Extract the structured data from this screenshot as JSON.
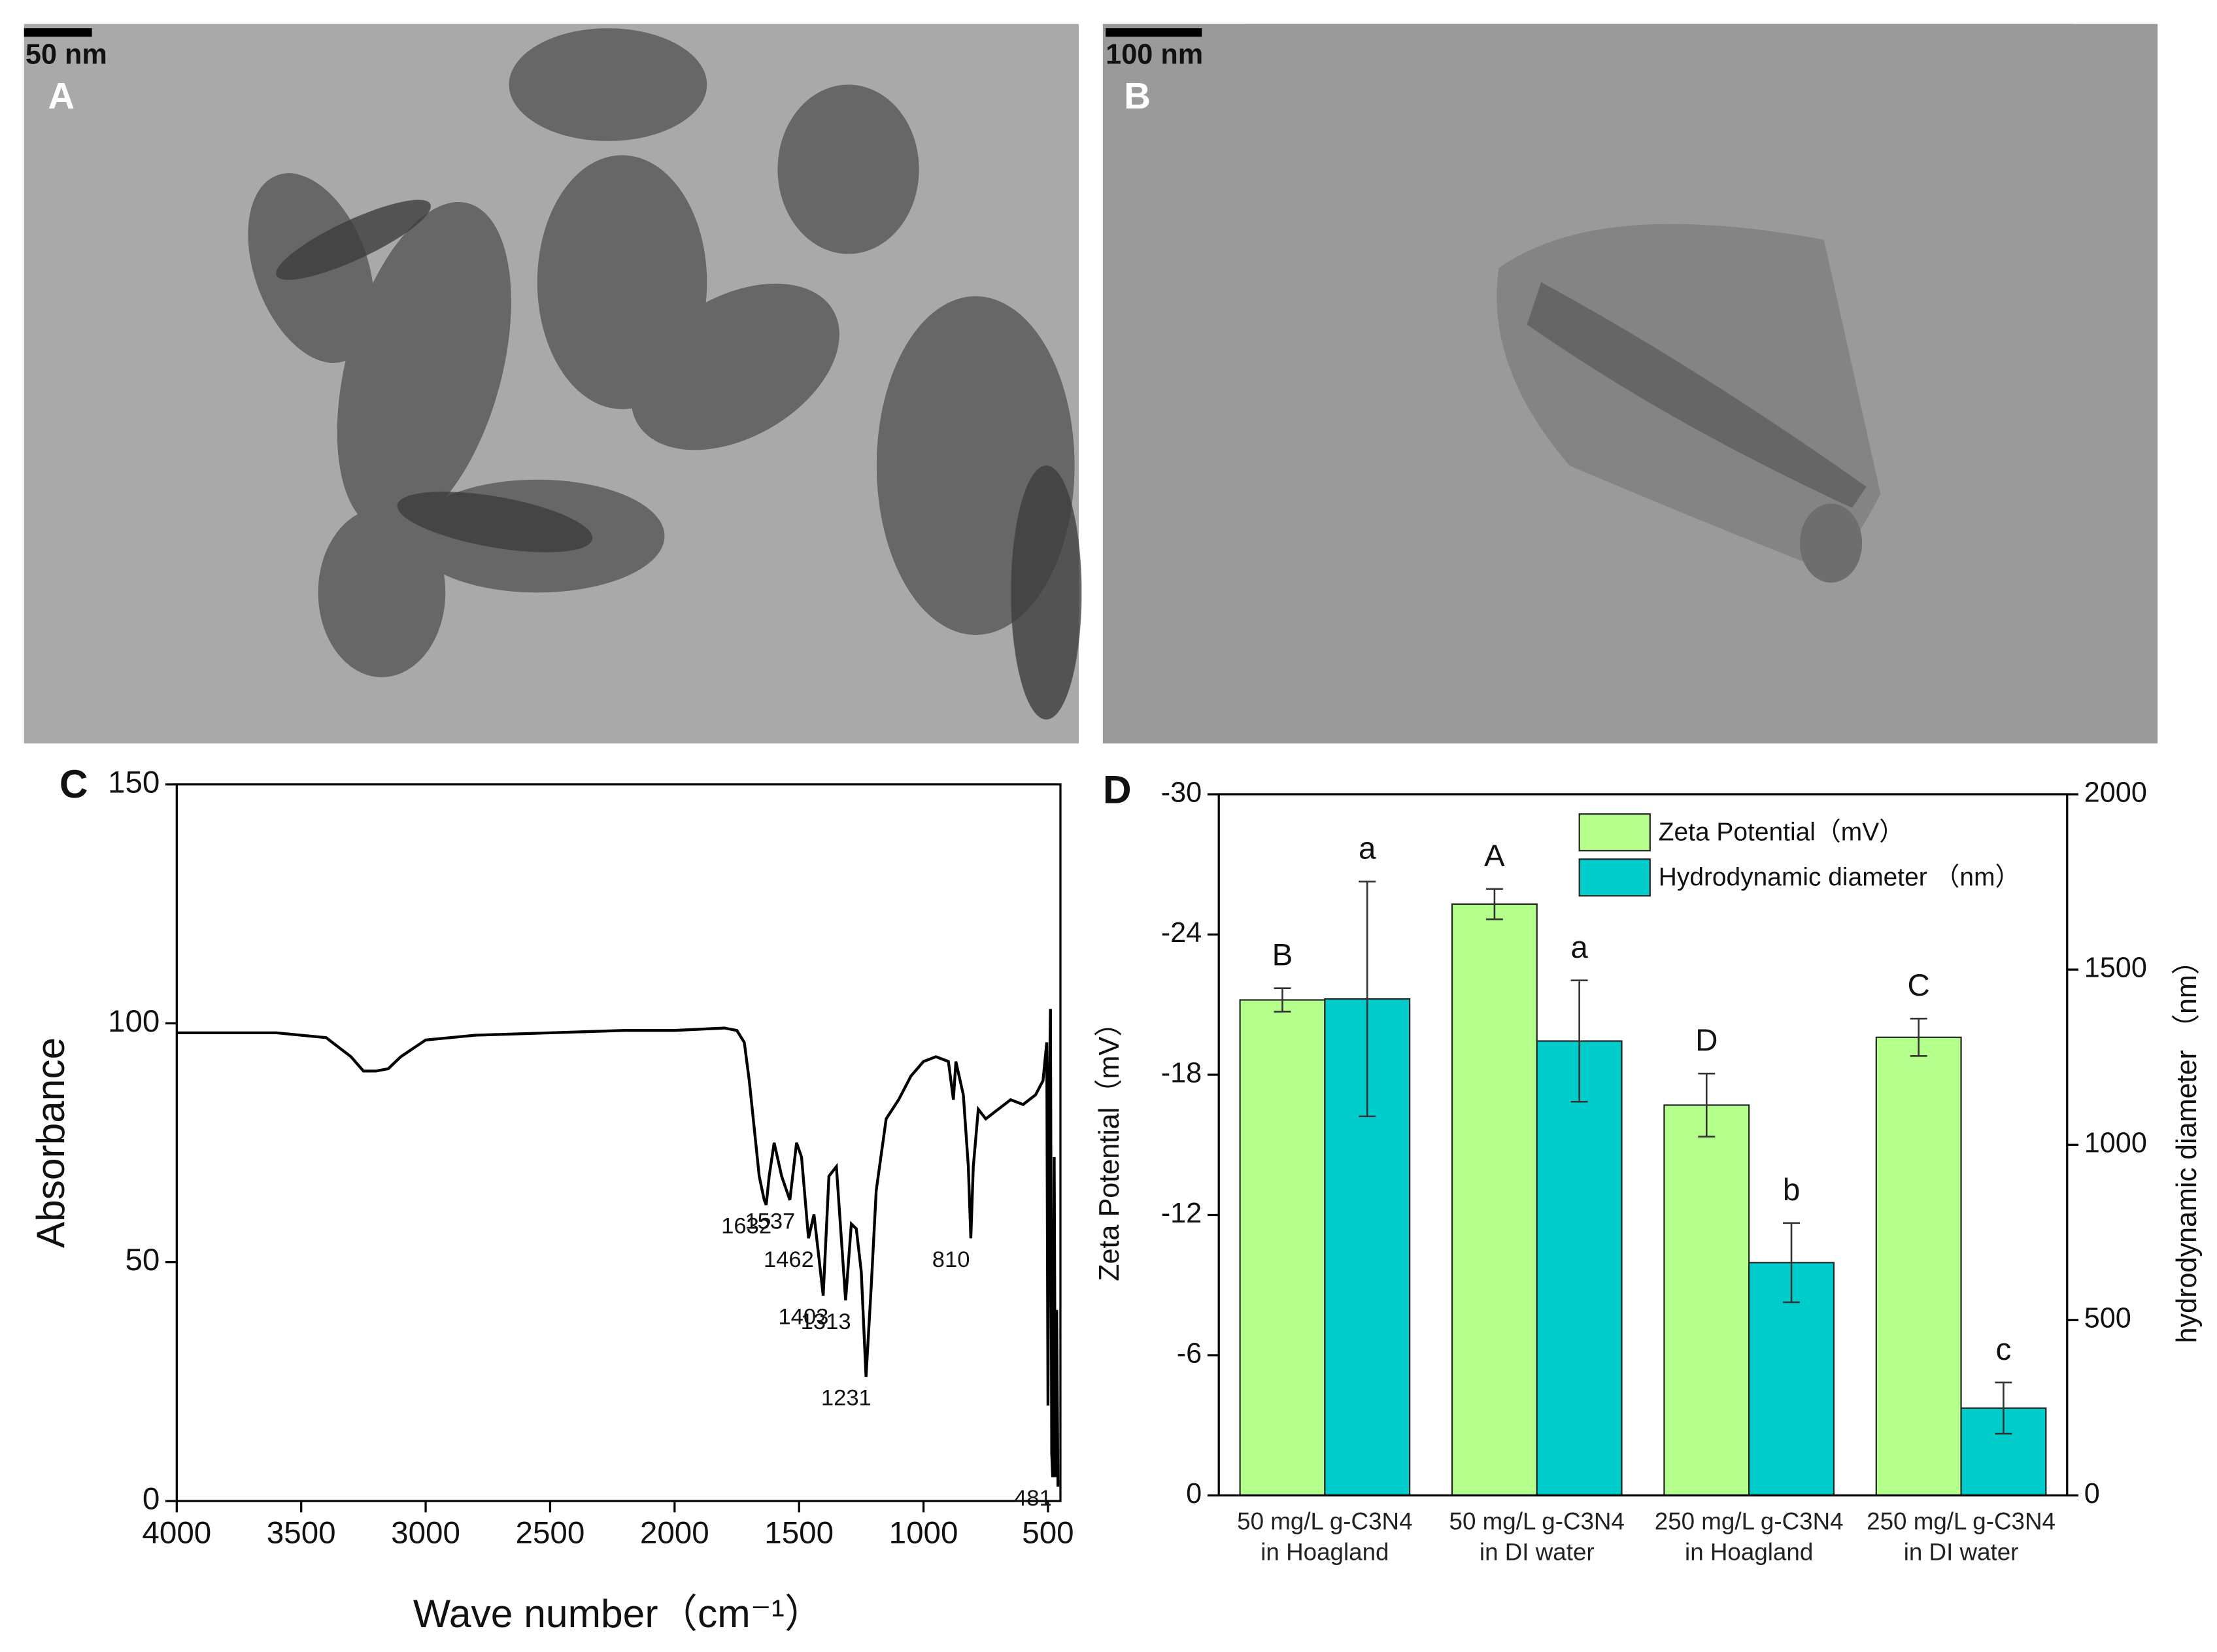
{
  "images": [
    {
      "scale_bar": "50 nm",
      "label": "A"
    },
    {
      "scale_bar": "100 nm",
      "label": "B"
    }
  ],
  "chart_data": [
    {
      "type": "line",
      "panel_label": "C",
      "x_label": "Wave number（cm⁻¹）",
      "y_label": "Absorbance",
      "color": "#000000",
      "x": [
        4000,
        3800,
        3600,
        3400,
        3300,
        3250,
        3200,
        3150,
        3100,
        3000,
        2800,
        2500,
        2200,
        2000,
        1800,
        1750,
        1720,
        1700,
        1680,
        1660,
        1640,
        1632,
        1620,
        1600,
        1570,
        1537,
        1510,
        1490,
        1462,
        1440,
        1403,
        1380,
        1350,
        1313,
        1290,
        1270,
        1250,
        1231,
        1210,
        1190,
        1150,
        1100,
        1050,
        1000,
        950,
        900,
        880,
        870,
        840,
        820,
        810,
        800,
        780,
        750,
        700,
        650,
        600,
        550,
        520,
        505,
        500,
        495,
        490,
        485,
        481,
        475,
        470,
        465,
        460
      ],
      "values": [
        98,
        98,
        98,
        97,
        93,
        90,
        90,
        90.5,
        93,
        96.5,
        97.5,
        98,
        98.5,
        98.5,
        99,
        98.5,
        96,
        88,
        78,
        68,
        63,
        62,
        68,
        75,
        68,
        63,
        75,
        72,
        55,
        60,
        43,
        68,
        70,
        42,
        58,
        57,
        48,
        26,
        45,
        65,
        80,
        84,
        89,
        92,
        93,
        92,
        84,
        92,
        85,
        70,
        55,
        70,
        82,
        80,
        82,
        84,
        83,
        85,
        88,
        96,
        20,
        85,
        103,
        10,
        5,
        72,
        5,
        40,
        3
      ],
      "xlim": [
        4000,
        450
      ],
      "ylim": [
        0,
        150
      ],
      "xticks": [
        4000,
        3500,
        3000,
        2500,
        2000,
        1500,
        1000,
        500
      ],
      "yticks": [
        0,
        50,
        100,
        150
      ],
      "peaks": {
        "x": [
          1632,
          1537,
          1462,
          1403,
          1313,
          1231,
          810,
          481
        ],
        "y": [
          62,
          63,
          55,
          43,
          42,
          26,
          55,
          5
        ]
      }
    },
    {
      "type": "bar",
      "panel_label": "D",
      "categories": [
        "50 mg/L g-C3N4\nin Hoagland",
        "50 mg/L g-C3N4\nin DI water",
        "250 mg/L g-C3N4\nin Hoagland",
        "250 mg/L g-C3N4\nin DI water"
      ],
      "y_label": "Zeta Potential（mV）",
      "y2_label": "hydrodynamic diameter （nm）",
      "ylim": [
        0,
        -30
      ],
      "yticks": [
        0,
        -6,
        -12,
        -18,
        -24,
        -30
      ],
      "y2lim": [
        0,
        2000
      ],
      "y2ticks": [
        0,
        500,
        1000,
        1500,
        2000
      ],
      "legend": "upper right",
      "series": [
        {
          "name": "Zeta Potential（mV）",
          "color": "#b5ff8c",
          "values": [
            -21.2,
            -25.3,
            -16.7,
            -19.6
          ],
          "errors": [
            0.5,
            0.65,
            1.35,
            0.8
          ],
          "letters": [
            "B",
            "A",
            "D",
            "C"
          ]
        },
        {
          "name": "Hydrodynamic diameter （nm）",
          "axis": "y2",
          "color": "#00cccc",
          "values": [
            1416,
            1296,
            664,
            249
          ],
          "errors": [
            335,
            173,
            113,
            73
          ],
          "letters": [
            "a",
            "a",
            "b",
            "c"
          ]
        }
      ]
    }
  ]
}
